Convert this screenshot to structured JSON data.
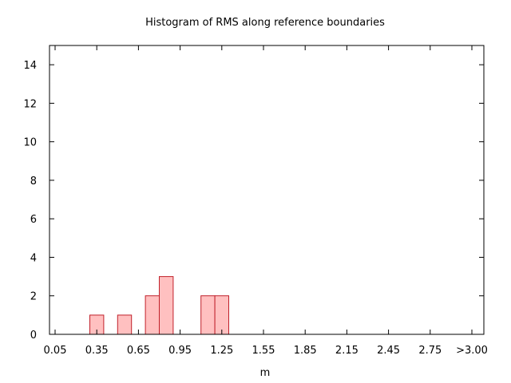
{
  "chart_data": {
    "type": "bar",
    "title": "Histogram of RMS along reference boundaries",
    "xlabel": "m",
    "ylabel": "",
    "x_ticks": [
      "0.05",
      "0.35",
      "0.65",
      "0.95",
      "1.25",
      "1.55",
      "1.85",
      "2.15",
      "2.45",
      "2.75",
      ">3.00"
    ],
    "y_ticks": [
      "0",
      "2",
      "4",
      "6",
      "8",
      "10",
      "12",
      "14"
    ],
    "xlim": [
      0,
      3.0
    ],
    "ylim": [
      0,
      15
    ],
    "bin_width": 0.1,
    "bins": [
      {
        "x0": 0.3,
        "x1": 0.4,
        "count": 1
      },
      {
        "x0": 0.5,
        "x1": 0.6,
        "count": 1
      },
      {
        "x0": 0.7,
        "x1": 0.8,
        "count": 2
      },
      {
        "x0": 0.8,
        "x1": 0.9,
        "count": 3
      },
      {
        "x0": 1.1,
        "x1": 1.2,
        "count": 2
      },
      {
        "x0": 1.2,
        "x1": 1.3,
        "count": 2
      }
    ],
    "bar_fill": "#ffc0c0",
    "bar_stroke": "#c0202a",
    "grid": false,
    "legend": "none"
  }
}
